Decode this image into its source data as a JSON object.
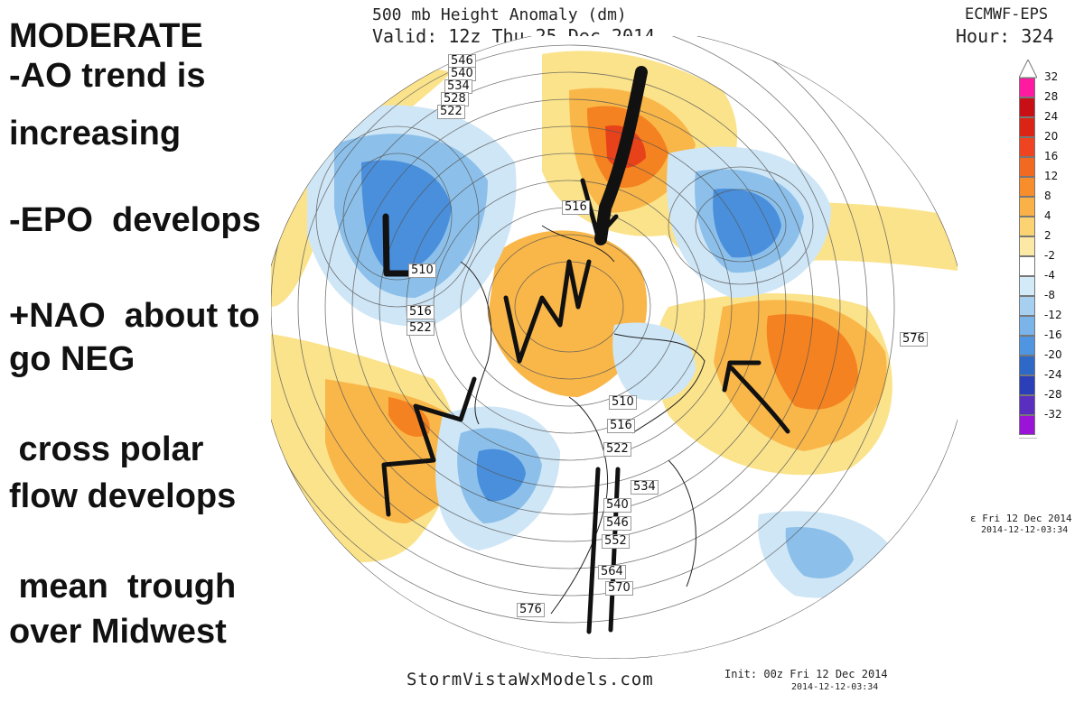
{
  "notes": {
    "title": "MODERATE",
    "lines": [
      "-AO trend is",
      "increasing",
      "-EPO  develops",
      "+NAO  about to",
      "go NEG",
      " cross polar",
      "flow develops",
      " mean  trough",
      "over Midwest"
    ]
  },
  "map": {
    "title": "500 mb Height Anomaly (dm)",
    "valid": "Valid: 12z Thu 25 Dec 2014",
    "model": "ECMWF-EPS",
    "hour": "Hour: 324",
    "issued": "ε Fri 12 Dec 2014",
    "issued_stamp": "2014-12-12-03:34",
    "init": "Init: 00z Fri 12 Dec 2014",
    "init_stamp": "2014-12-12-03:34",
    "watermark": "StormVistaWxModels.com",
    "contour_labels": [
      "546",
      "540",
      "534",
      "528",
      "522",
      "516",
      "510",
      "516",
      "522",
      "534",
      "540",
      "546",
      "552",
      "564",
      "570",
      "576",
      "576",
      "516",
      "522",
      "510",
      "516",
      "510",
      "546",
      "534",
      "528",
      "522"
    ],
    "colors": {
      "pos_light": "#fbe38c",
      "pos_mid": "#f9b74a",
      "pos_strong": "#f58220",
      "pos_core": "#e8421a",
      "neg_light": "#cfe6f6",
      "neg_mid": "#8cc0ea",
      "neg_strong": "#4a8fdc",
      "annotation": "#111111"
    }
  },
  "legend": {
    "entries": [
      {
        "label": "32",
        "color": "#ff1aa0"
      },
      {
        "label": "28",
        "color": "#c80f16"
      },
      {
        "label": "24",
        "color": "#dc2416"
      },
      {
        "label": "20",
        "color": "#ee4422"
      },
      {
        "label": "16",
        "color": "#f26a22"
      },
      {
        "label": "12",
        "color": "#f88d2c"
      },
      {
        "label": "8",
        "color": "#fab248"
      },
      {
        "label": "4",
        "color": "#fbd372"
      },
      {
        "label": "2",
        "color": "#fde9a6"
      },
      {
        "label": "-2",
        "color": "#ffffff"
      },
      {
        "label": "-4",
        "color": "#d3eaf8"
      },
      {
        "label": "-8",
        "color": "#a7d0f0"
      },
      {
        "label": "-12",
        "color": "#7ab4e8"
      },
      {
        "label": "-16",
        "color": "#4f95df"
      },
      {
        "label": "-20",
        "color": "#2f69c8"
      },
      {
        "label": "-24",
        "color": "#2a3fb8"
      },
      {
        "label": "-28",
        "color": "#5a2fc0"
      },
      {
        "label": "-32",
        "color": "#9a14d8"
      }
    ]
  }
}
